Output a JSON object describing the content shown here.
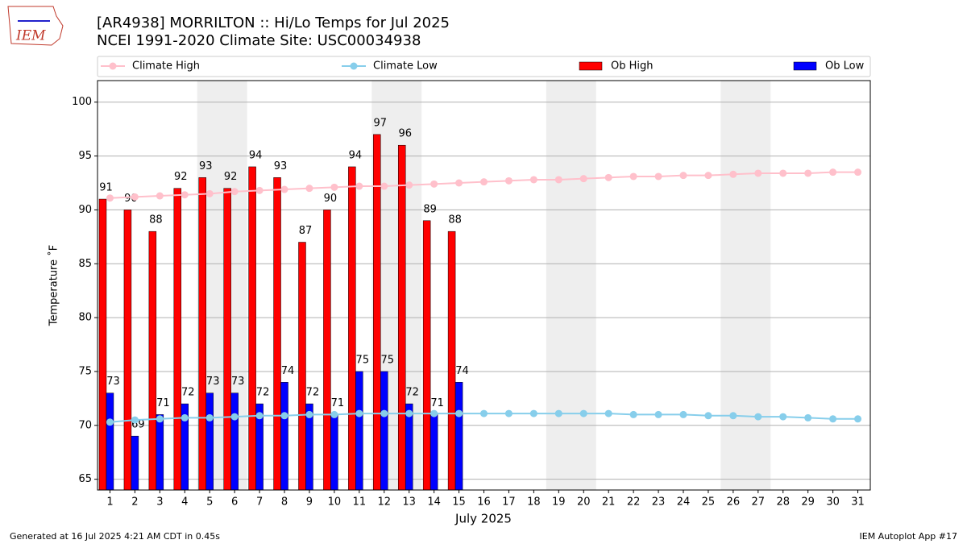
{
  "chart_data": {
    "type": "bar-line",
    "title": "[AR4938] MORRILTON :: Hi/Lo Temps for Jul 2025",
    "subtitle": "NCEI 1991-2020 Climate Site: USC00034938",
    "logo": "IEM",
    "y_label": "Temperature ˚F",
    "x_label": "July 2025",
    "footer_left": "Generated at 16 Jul 2025 4:21 AM CDT in 0.45s",
    "footer_right": "IEM Autoplot App #17",
    "x": [
      1,
      2,
      3,
      4,
      5,
      6,
      7,
      8,
      9,
      10,
      11,
      12,
      13,
      14,
      15,
      16,
      17,
      18,
      19,
      20,
      21,
      22,
      23,
      24,
      25,
      26,
      27,
      28,
      29,
      30,
      31
    ],
    "xlim": [
      0.5,
      31.5
    ],
    "xticks": [
      1,
      2,
      3,
      4,
      5,
      6,
      7,
      8,
      9,
      10,
      11,
      12,
      13,
      14,
      15,
      16,
      17,
      18,
      19,
      20,
      21,
      22,
      23,
      24,
      25,
      26,
      27,
      28,
      29,
      30,
      31
    ],
    "ylim": [
      64,
      102
    ],
    "yticks": [
      65,
      70,
      75,
      80,
      85,
      90,
      95,
      100
    ],
    "grid": true,
    "shaded_days": [
      [
        5,
        6
      ],
      [
        12,
        13
      ],
      [
        19,
        20
      ],
      [
        26,
        27
      ]
    ],
    "shade_color": "#eeeeee",
    "series": [
      {
        "name": "Climate High",
        "kind": "line",
        "color": "#ffc0cb",
        "values": [
          91.1,
          91.2,
          91.3,
          91.4,
          91.5,
          91.7,
          91.8,
          91.9,
          92.0,
          92.1,
          92.2,
          92.2,
          92.3,
          92.4,
          92.5,
          92.6,
          92.7,
          92.8,
          92.8,
          92.9,
          93.0,
          93.1,
          93.1,
          93.2,
          93.2,
          93.3,
          93.4,
          93.4,
          93.4,
          93.5,
          93.5
        ]
      },
      {
        "name": "Climate Low",
        "kind": "line",
        "color": "#87ceeb",
        "values": [
          70.3,
          70.5,
          70.6,
          70.7,
          70.7,
          70.8,
          70.9,
          70.9,
          71.0,
          71.0,
          71.1,
          71.1,
          71.1,
          71.1,
          71.1,
          71.1,
          71.1,
          71.1,
          71.1,
          71.1,
          71.1,
          71.0,
          71.0,
          71.0,
          70.9,
          70.9,
          70.8,
          70.8,
          70.7,
          70.6,
          70.6
        ]
      },
      {
        "name": "Ob High",
        "kind": "bar",
        "color": "#ff0000",
        "values": [
          91,
          90,
          88,
          92,
          93,
          92,
          94,
          93,
          87,
          90,
          94,
          97,
          96,
          89,
          88,
          null,
          null,
          null,
          null,
          null,
          null,
          null,
          null,
          null,
          null,
          null,
          null,
          null,
          null,
          null,
          null
        ]
      },
      {
        "name": "Ob Low",
        "kind": "bar",
        "color": "#0000ff",
        "values": [
          73,
          69,
          71,
          72,
          73,
          73,
          72,
          74,
          72,
          71,
          75,
          75,
          72,
          71,
          74,
          null,
          null,
          null,
          null,
          null,
          null,
          null,
          null,
          null,
          null,
          null,
          null,
          null,
          null,
          null,
          null
        ]
      }
    ]
  }
}
